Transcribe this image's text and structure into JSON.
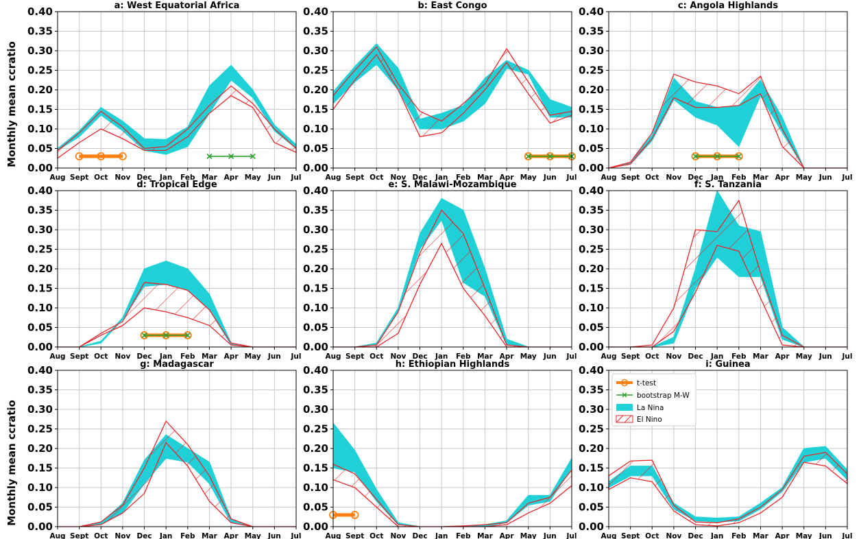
{
  "y_axis_label": "Monthly mean ccratio",
  "colors": {
    "la_nina": "#1fd1d6",
    "el_nino": "#e8262b",
    "t_test": "#ff7f0e",
    "bootstrap": "#2ca02c"
  },
  "chart_data": {
    "type": "area",
    "months": [
      "Aug",
      "Sept",
      "Oct",
      "Nov",
      "Dec",
      "Jan",
      "Feb",
      "Mar",
      "Apr",
      "May",
      "Jun",
      "Jul"
    ],
    "yticks": [
      "0.00",
      "0.05",
      "0.10",
      "0.15",
      "0.20",
      "0.25",
      "0.30",
      "0.35",
      "0.40"
    ],
    "ylim": [
      0,
      0.4
    ],
    "grid": true,
    "legend": {
      "placement": "top-left of panel i",
      "entries": [
        "t-test",
        "bootstrap M-W",
        "La Nina",
        "El Nino"
      ]
    },
    "panels": [
      {
        "title": "a: West Equatorial Africa",
        "la_nina_lower": [
          0.045,
          0.08,
          0.135,
          0.095,
          0.045,
          0.035,
          0.055,
          0.14,
          0.225,
          0.18,
          0.095,
          0.05
        ],
        "la_nina_upper": [
          0.05,
          0.095,
          0.155,
          0.12,
          0.075,
          0.073,
          0.105,
          0.21,
          0.263,
          0.2,
          0.11,
          0.06
        ],
        "el_nino_lower": [
          0.025,
          0.065,
          0.1,
          0.075,
          0.045,
          0.045,
          0.08,
          0.14,
          0.185,
          0.155,
          0.065,
          0.04
        ],
        "el_nino_upper": [
          0.045,
          0.09,
          0.145,
          0.105,
          0.05,
          0.055,
          0.1,
          0.16,
          0.21,
          0.165,
          0.1,
          0.05
        ],
        "t_test": [
          1,
          2,
          3
        ],
        "bootstrap": [
          7,
          8,
          9
        ]
      },
      {
        "title": "b: East Congo",
        "la_nina_lower": [
          0.165,
          0.22,
          0.265,
          0.2,
          0.1,
          0.1,
          0.12,
          0.165,
          0.255,
          0.24,
          0.13,
          0.13
        ],
        "la_nina_upper": [
          0.195,
          0.26,
          0.318,
          0.255,
          0.125,
          0.14,
          0.16,
          0.23,
          0.275,
          0.25,
          0.175,
          0.155
        ],
        "el_nino_lower": [
          0.15,
          0.225,
          0.29,
          0.2,
          0.08,
          0.09,
          0.14,
          0.2,
          0.27,
          0.19,
          0.115,
          0.135
        ],
        "el_nino_upper": [
          0.185,
          0.25,
          0.31,
          0.215,
          0.145,
          0.12,
          0.165,
          0.215,
          0.305,
          0.22,
          0.135,
          0.145
        ],
        "t_test": [
          9,
          10,
          11
        ],
        "bootstrap": [
          9,
          10,
          11
        ]
      },
      {
        "title": "c: Angola Highlands",
        "la_nina_lower": [
          0.0,
          0.01,
          0.07,
          0.175,
          0.13,
          0.11,
          0.055,
          0.185,
          0.09,
          0.0,
          0.0,
          0.0
        ],
        "la_nina_upper": [
          0.0,
          0.015,
          0.085,
          0.23,
          0.17,
          0.155,
          0.16,
          0.225,
          0.13,
          0.0,
          0.0,
          0.0
        ],
        "el_nino_lower": [
          0.0,
          0.01,
          0.075,
          0.18,
          0.155,
          0.155,
          0.16,
          0.19,
          0.055,
          0.0,
          0.0,
          0.0
        ],
        "el_nino_upper": [
          0.0,
          0.015,
          0.09,
          0.24,
          0.22,
          0.21,
          0.19,
          0.235,
          0.1,
          0.0,
          0.0,
          0.0
        ],
        "t_test": [
          4,
          5,
          6
        ],
        "bootstrap": [
          4,
          5,
          6
        ]
      },
      {
        "title": "d: Tropical Edge",
        "la_nina_lower": [
          0.0,
          0.0,
          0.01,
          0.07,
          0.155,
          0.16,
          0.145,
          0.095,
          0.005,
          0.0,
          0.0,
          0.0
        ],
        "la_nina_upper": [
          0.0,
          0.0,
          0.015,
          0.075,
          0.2,
          0.22,
          0.2,
          0.135,
          0.01,
          0.0,
          0.0,
          0.0
        ],
        "el_nino_lower": [
          0.0,
          0.0,
          0.03,
          0.055,
          0.1,
          0.09,
          0.075,
          0.055,
          0.005,
          0.0,
          0.0,
          0.0
        ],
        "el_nino_upper": [
          0.0,
          0.0,
          0.035,
          0.065,
          0.165,
          0.16,
          0.145,
          0.095,
          0.01,
          0.0,
          0.0,
          0.0
        ],
        "t_test": [
          4,
          5,
          6
        ],
        "bootstrap": [
          4,
          5,
          6
        ]
      },
      {
        "title": "e: S. Malawi-Mozambique",
        "la_nina_lower": [
          0.0,
          0.0,
          0.005,
          0.09,
          0.25,
          0.325,
          0.165,
          0.13,
          0.005,
          0.0,
          0.0,
          0.0
        ],
        "la_nina_upper": [
          0.0,
          0.0,
          0.01,
          0.1,
          0.29,
          0.38,
          0.35,
          0.2,
          0.02,
          0.0,
          0.0,
          0.0
        ],
        "el_nino_lower": [
          0.0,
          0.0,
          0.0,
          0.035,
          0.16,
          0.265,
          0.15,
          0.08,
          0.0,
          0.0,
          0.0,
          0.0
        ],
        "el_nino_upper": [
          0.0,
          0.0,
          0.005,
          0.09,
          0.24,
          0.35,
          0.29,
          0.15,
          0.005,
          0.0,
          0.0,
          0.0
        ],
        "t_test": [],
        "bootstrap": []
      },
      {
        "title": "f: S. Tanzania",
        "la_nina_lower": [
          0.0,
          0.0,
          0.0,
          0.01,
          0.15,
          0.23,
          0.18,
          0.18,
          0.02,
          0.0,
          0.0,
          0.0
        ],
        "la_nina_upper": [
          0.0,
          0.0,
          0.0,
          0.025,
          0.2,
          0.4,
          0.31,
          0.295,
          0.05,
          0.0,
          0.0,
          0.0
        ],
        "el_nino_lower": [
          0.0,
          0.0,
          0.0,
          0.04,
          0.14,
          0.26,
          0.245,
          0.125,
          0.005,
          0.0,
          0.0,
          0.0
        ],
        "el_nino_upper": [
          0.0,
          0.0,
          0.005,
          0.1,
          0.3,
          0.295,
          0.375,
          0.19,
          0.03,
          0.0,
          0.0,
          0.0
        ],
        "t_test": [],
        "bootstrap": []
      },
      {
        "title": "g: Madagascar",
        "la_nina_lower": [
          0.0,
          0.0,
          0.005,
          0.035,
          0.11,
          0.175,
          0.165,
          0.11,
          0.01,
          0.0,
          0.0,
          0.0
        ],
        "la_nina_upper": [
          0.0,
          0.0,
          0.01,
          0.06,
          0.17,
          0.235,
          0.2,
          0.165,
          0.02,
          0.0,
          0.0,
          0.0
        ],
        "el_nino_lower": [
          0.0,
          0.0,
          0.005,
          0.035,
          0.085,
          0.215,
          0.155,
          0.065,
          0.01,
          0.0,
          0.0,
          0.0
        ],
        "el_nino_upper": [
          0.0,
          0.0,
          0.012,
          0.055,
          0.15,
          0.27,
          0.21,
          0.13,
          0.02,
          0.0,
          0.0,
          0.0
        ],
        "t_test": [],
        "bootstrap": []
      },
      {
        "title": "h: Ethiopian Highlands",
        "la_nina_lower": [
          0.15,
          0.14,
          0.065,
          0.005,
          0.0,
          0.0,
          0.0,
          0.0,
          0.01,
          0.055,
          0.065,
          0.15
        ],
        "la_nina_upper": [
          0.265,
          0.195,
          0.095,
          0.01,
          0.0,
          0.0,
          0.0,
          0.005,
          0.015,
          0.08,
          0.08,
          0.175
        ],
        "el_nino_lower": [
          0.12,
          0.1,
          0.05,
          0.0,
          0.0,
          0.0,
          0.0,
          0.0,
          0.005,
          0.035,
          0.06,
          0.105
        ],
        "el_nino_upper": [
          0.16,
          0.135,
          0.07,
          0.005,
          0.0,
          0.0,
          0.002,
          0.005,
          0.01,
          0.06,
          0.075,
          0.145
        ],
        "t_test": [
          0,
          1
        ],
        "bootstrap": []
      },
      {
        "title": "i: Guinea",
        "la_nina_lower": [
          0.1,
          0.13,
          0.13,
          0.045,
          0.015,
          0.012,
          0.015,
          0.045,
          0.09,
          0.165,
          0.175,
          0.12
        ],
        "la_nina_upper": [
          0.115,
          0.155,
          0.155,
          0.06,
          0.025,
          0.022,
          0.025,
          0.06,
          0.1,
          0.2,
          0.205,
          0.145
        ],
        "el_nino_lower": [
          0.095,
          0.125,
          0.115,
          0.04,
          0.005,
          0.002,
          0.01,
          0.035,
          0.075,
          0.165,
          0.155,
          0.11
        ],
        "el_nino_upper": [
          0.13,
          0.168,
          0.17,
          0.055,
          0.012,
          0.01,
          0.02,
          0.05,
          0.095,
          0.18,
          0.19,
          0.135
        ],
        "t_test": [],
        "bootstrap": []
      }
    ]
  }
}
